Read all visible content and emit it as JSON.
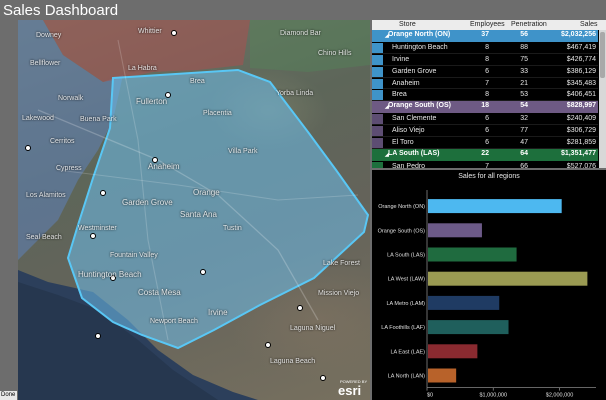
{
  "app": {
    "title": "Sales Dashboard",
    "status": "Done"
  },
  "map": {
    "labels": [
      "Norwalk",
      "Fullerton",
      "Anaheim",
      "Orange",
      "Garden Grove",
      "Santa Ana",
      "Huntington Beach",
      "Costa Mesa",
      "Irvine",
      "Newport Beach",
      "Laguna Beach",
      "Laguna Niguel",
      "Mission Viejo",
      "Lake Forest",
      "Buena Park",
      "La Habra",
      "Yorba Linda",
      "Villa Park",
      "Tustin",
      "Fountain Valley",
      "Westminster",
      "Cypress",
      "Los Alamitos",
      "Seal Beach",
      "Placentia",
      "Brea",
      "Whittier",
      "Downey",
      "Bellflower",
      "Lakewood",
      "Cerritos",
      "Diamond Bar",
      "Chino Hills"
    ],
    "logo": {
      "powered_by": "POWERED BY",
      "name": "esri"
    }
  },
  "table": {
    "headers": {
      "store": "Store",
      "employees": "Employees",
      "penetration": "Penetration",
      "sales": "Sales"
    },
    "rows": [
      {
        "type": "group",
        "name": "Orange North (ON)",
        "employees": "37",
        "penetration": "56",
        "sales": "$2,032,256",
        "color": "#3f93c9"
      },
      {
        "type": "child",
        "name": "Huntington Beach",
        "employees": "8",
        "penetration": "88",
        "sales": "$467,419",
        "color": "#3f93c9"
      },
      {
        "type": "child",
        "name": "Irvine",
        "employees": "8",
        "penetration": "75",
        "sales": "$426,774",
        "color": "#3f93c9"
      },
      {
        "type": "child",
        "name": "Garden Grove",
        "employees": "6",
        "penetration": "33",
        "sales": "$386,129",
        "color": "#3f93c9"
      },
      {
        "type": "child",
        "name": "Anaheim",
        "employees": "7",
        "penetration": "21",
        "sales": "$345,483",
        "color": "#3f93c9"
      },
      {
        "type": "child",
        "name": "Brea",
        "employees": "8",
        "penetration": "53",
        "sales": "$406,451",
        "color": "#3f93c9"
      },
      {
        "type": "group",
        "name": "Orange South (OS)",
        "employees": "18",
        "penetration": "54",
        "sales": "$828,997",
        "color": "#6e5a84"
      },
      {
        "type": "child",
        "name": "San Clemente",
        "employees": "6",
        "penetration": "32",
        "sales": "$240,409",
        "color": "#5d4d73"
      },
      {
        "type": "child",
        "name": "Aliso Viejo",
        "employees": "6",
        "penetration": "77",
        "sales": "$306,729",
        "color": "#5d4d73"
      },
      {
        "type": "child",
        "name": "El Toro",
        "employees": "6",
        "penetration": "47",
        "sales": "$281,859",
        "color": "#5d4d73"
      },
      {
        "type": "group",
        "name": "LA South (LAS)",
        "employees": "22",
        "penetration": "64",
        "sales": "$1,351,477",
        "color": "#1d6f3c"
      },
      {
        "type": "child",
        "name": "San Pedro",
        "employees": "7",
        "penetration": "66",
        "sales": "$527,076",
        "color": "#1d6f3c"
      }
    ]
  },
  "chart_data": {
    "type": "bar",
    "orientation": "horizontal",
    "title": "Sales for all regions",
    "categories": [
      "Orange North (ON)",
      "Orange South (OS)",
      "LA South (LAS)",
      "LA West (LAW)",
      "LA Metro (LAM)",
      "LA Foothills (LAF)",
      "LA East (LAE)",
      "LA North (LAN)"
    ],
    "values": [
      2032256,
      828997,
      1351477,
      2420000,
      1090000,
      1230000,
      760000,
      440000
    ],
    "colors": [
      "#4db8f0",
      "#6c5a88",
      "#1f6b3f",
      "#9a9a52",
      "#1f3b63",
      "#1f5f5c",
      "#8a2a30",
      "#b8622a"
    ],
    "x_ticks": [
      "$0",
      "$1,000,000",
      "$2,000,000"
    ],
    "xlim": [
      0,
      2550000
    ],
    "grid": false
  }
}
